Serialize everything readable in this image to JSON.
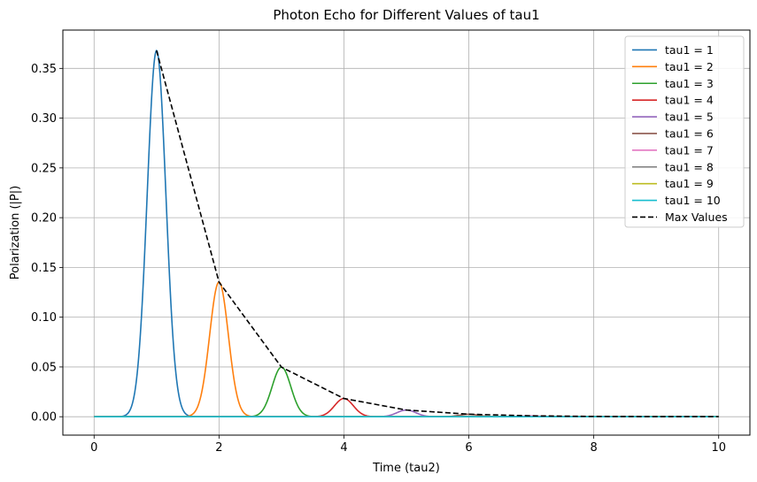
{
  "chart_data": {
    "type": "line",
    "title": "Photon Echo for Different Values of tau1",
    "xlabel": "Time (tau2)",
    "ylabel": "Polarization (|P|)",
    "xlim": [
      -0.5,
      10.5
    ],
    "ylim": [
      -0.0185,
      0.3885
    ],
    "xticks": [
      0,
      2,
      4,
      6,
      8,
      10
    ],
    "yticks": [
      0.0,
      0.05,
      0.1,
      0.15,
      0.2,
      0.25,
      0.3,
      0.35
    ],
    "ytick_labels": [
      "0.00",
      "0.05",
      "0.10",
      "0.15",
      "0.20",
      "0.25",
      "0.30",
      "0.35"
    ],
    "grid": true,
    "legend_position": "top-right",
    "x_range": [
      0,
      10
    ],
    "peak_width_sigma": 0.15,
    "series": [
      {
        "name": "tau1 = 1",
        "color": "#1f77b4",
        "peak_at": 1,
        "peak_value": 0.3679
      },
      {
        "name": "tau1 = 2",
        "color": "#ff7f0e",
        "peak_at": 2,
        "peak_value": 0.1353
      },
      {
        "name": "tau1 = 3",
        "color": "#2ca02c",
        "peak_at": 3,
        "peak_value": 0.0498
      },
      {
        "name": "tau1 = 4",
        "color": "#d62728",
        "peak_at": 4,
        "peak_value": 0.0183
      },
      {
        "name": "tau1 = 5",
        "color": "#9467bd",
        "peak_at": 5,
        "peak_value": 0.0067
      },
      {
        "name": "tau1 = 6",
        "color": "#8c564b",
        "peak_at": 6,
        "peak_value": 0.0025
      },
      {
        "name": "tau1 = 7",
        "color": "#e377c2",
        "peak_at": 7,
        "peak_value": 0.0009
      },
      {
        "name": "tau1 = 8",
        "color": "#7f7f7f",
        "peak_at": 8,
        "peak_value": 0.0003
      },
      {
        "name": "tau1 = 9",
        "color": "#bcbd22",
        "peak_at": 9,
        "peak_value": 0.0001
      },
      {
        "name": "tau1 = 10",
        "color": "#17becf",
        "peak_at": 10,
        "peak_value": 5e-05
      }
    ],
    "max_values": {
      "name": "Max Values",
      "color": "#000000",
      "style": "dashed",
      "x": [
        1,
        2,
        3,
        4,
        5,
        6,
        7,
        8,
        9,
        10
      ],
      "y": [
        0.3679,
        0.1353,
        0.0498,
        0.0183,
        0.0067,
        0.0025,
        0.0009,
        0.0003,
        0.0001,
        5e-05
      ]
    }
  }
}
